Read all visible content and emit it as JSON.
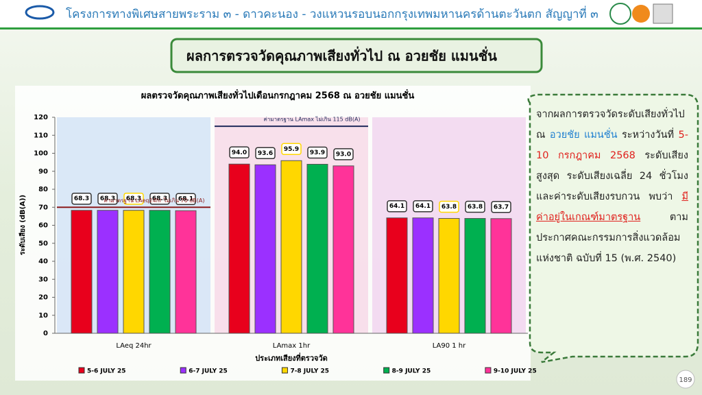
{
  "header": {
    "title": "โครงการทางพิเศษสายพระราม ๓ - ดาวคะนอง - วงแหวนรอบนอกกรุงเทพมหานครด้านตะวันตก สัญญาที่ ๓",
    "banner": "ผลการตรวจวัดคุณภาพเสียงทั่วไป ณ อวยชัย แมนชั่น"
  },
  "chart_data": {
    "type": "bar",
    "title": "ผลตรวจวัดคุณภาพเสียงทั่วไปเดือนกรกฎาคม 2568 ณ อวยชัย แมนชั่น",
    "x_label": "ประเภทเสียงที่ตรวจวัด",
    "y_label": "ระดับเสียง (dB(A))",
    "categories": [
      "LAeq 24hr",
      "LAmax 1hr",
      "LA90 1 hr"
    ],
    "series": [
      {
        "name": "5-6 JULY  25",
        "color": "#e8001c",
        "values": [
          68.3,
          94.0,
          64.1
        ],
        "value_labels": [
          "68.3",
          "94.0",
          "64.1"
        ]
      },
      {
        "name": "6-7 JULY  25",
        "color": "#9b30ff",
        "values": [
          68.3,
          93.6,
          64.1
        ],
        "value_labels": [
          "68.3",
          "93.6",
          "64.1"
        ]
      },
      {
        "name": "7-8 JULY  25",
        "color": "#ffd700",
        "values": [
          68.3,
          95.9,
          63.8
        ],
        "value_labels": [
          "68.3",
          "95.9",
          "63.8"
        ]
      },
      {
        "name": "8-9 JULY  25",
        "color": "#00b050",
        "values": [
          68.3,
          93.9,
          63.8
        ],
        "value_labels": [
          "68.3",
          "93.9",
          "63.8"
        ]
      },
      {
        "name": "9-10 JULY  25",
        "color": "#ff3399",
        "values": [
          68.1,
          93.0,
          63.7
        ],
        "value_labels": [
          "68.1",
          "93.0",
          "63.7"
        ]
      }
    ],
    "reference_lines": [
      {
        "label": "ค่ามาตรฐาน  LAeq24hr ไม่เกิน 70 dB(A)",
        "value": 70,
        "color": "#8b1a1a"
      },
      {
        "label": "ค่ามาตรฐาน  LAmax ไม่เกิน 115 dB(A)",
        "value": 115,
        "color": "#1f2a5a"
      }
    ],
    "ylim": [
      0,
      120
    ],
    "yticks": [
      0,
      10,
      20,
      30,
      40,
      50,
      60,
      70,
      80,
      90,
      100,
      110,
      120
    ],
    "legend": "bottom"
  },
  "callout": {
    "parts": [
      "จากผลการตรวจวัดระดับเสียงทั่วไป ณ ",
      "อวยชัย แมนชั่น",
      " ระหว่างวันที่ ",
      "5-10 กรกฎาคม 2568",
      " ระดับเสียงสูงสุด ระดับเสียงเฉลี่ย 24 ชั่วโมง และค่าระดับเสียงรบกวน พบว่า ",
      "มีค่าอยู่ในเกณฑ์มาตรฐาน",
      " ตามประกาศคณะกรรมการสิ่งแวดล้อมแห่งชาติ ฉบับที่ 15 (พ.ศ. 2540)"
    ]
  },
  "page_number": "189"
}
